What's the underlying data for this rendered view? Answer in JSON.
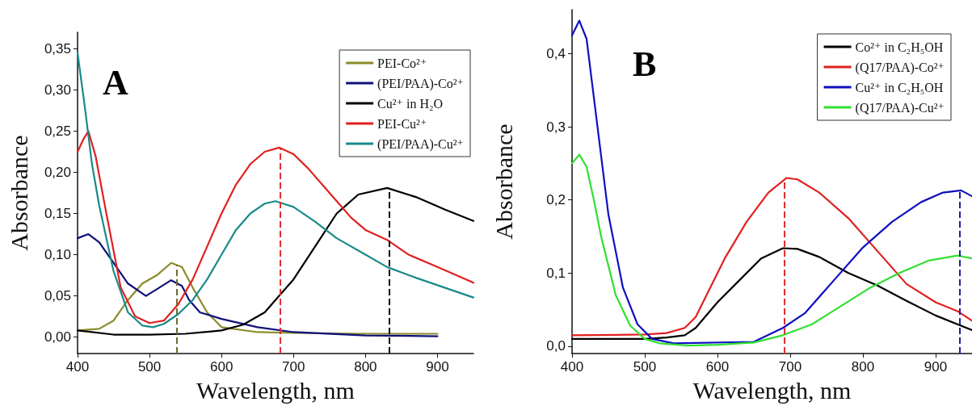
{
  "chart_data": [
    {
      "type": "line",
      "annotations": [
        "A"
      ],
      "xlabel": "Wavelength, nm",
      "ylabel": "Absorbance",
      "xlim": [
        400,
        950
      ],
      "xticks": [
        400,
        500,
        600,
        700,
        800,
        900
      ],
      "ylim": [
        -0.02,
        0.37
      ],
      "yticks": [
        {
          "value": 0,
          "label": "0,00"
        },
        {
          "value": 0.05,
          "label": "0,05"
        },
        {
          "value": 0.1,
          "label": "0,10"
        },
        {
          "value": 0.15,
          "label": "0,15"
        },
        {
          "value": 0.2,
          "label": "0,20"
        },
        {
          "value": 0.25,
          "label": "0,25"
        },
        {
          "value": 0.3,
          "label": "0,30"
        },
        {
          "value": 0.35,
          "label": "0,35"
        }
      ],
      "grid": false,
      "legend": "top right",
      "marker": "none",
      "line_style": "solid",
      "ref_lines": [
        {
          "axis": "x",
          "value": 538,
          "color": "#6b6b30",
          "line_style": "dashed"
        },
        {
          "axis": "x",
          "value": 681,
          "color": "#e03030",
          "line_style": "dashed"
        },
        {
          "axis": "x",
          "value": 833,
          "color": "#000000",
          "line_style": "dashed"
        }
      ],
      "series": [
        {
          "name": "PEI-Co²⁺",
          "color": "#8b8b2a",
          "x": [
            400,
            430,
            450,
            470,
            490,
            510,
            530,
            545,
            560,
            580,
            600,
            650,
            700,
            800,
            900
          ],
          "values": [
            0.008,
            0.01,
            0.02,
            0.045,
            0.065,
            0.075,
            0.09,
            0.085,
            0.06,
            0.03,
            0.012,
            0.006,
            0.005,
            0.004,
            0.004
          ]
        },
        {
          "name": "(PEI/PAA)-Co²⁺",
          "color": "#10107a",
          "x": [
            400,
            415,
            430,
            450,
            470,
            495,
            510,
            530,
            545,
            555,
            570,
            600,
            650,
            700,
            800,
            900
          ],
          "values": [
            0.12,
            0.125,
            0.115,
            0.09,
            0.065,
            0.05,
            0.058,
            0.069,
            0.062,
            0.045,
            0.03,
            0.022,
            0.012,
            0.006,
            0.002,
            0.001
          ]
        },
        {
          "name": "Cu²⁺ in H₂O",
          "color": "#000000",
          "x": [
            400,
            450,
            500,
            550,
            600,
            630,
            660,
            680,
            700,
            730,
            760,
            790,
            830,
            870,
            910,
            950
          ],
          "values": [
            0.008,
            0.003,
            0.003,
            0.004,
            0.008,
            0.015,
            0.03,
            0.05,
            0.07,
            0.11,
            0.15,
            0.173,
            0.181,
            0.17,
            0.155,
            0.141
          ]
        },
        {
          "name": "PEI-Cu²⁺",
          "color": "#e02020",
          "x": [
            400,
            408,
            415,
            425,
            440,
            460,
            480,
            500,
            520,
            540,
            560,
            580,
            600,
            620,
            640,
            660,
            680,
            700,
            720,
            750,
            780,
            800,
            830,
            860,
            900,
            950
          ],
          "values": [
            0.225,
            0.24,
            0.25,
            0.22,
            0.15,
            0.06,
            0.025,
            0.017,
            0.02,
            0.04,
            0.07,
            0.11,
            0.15,
            0.185,
            0.21,
            0.225,
            0.23,
            0.222,
            0.205,
            0.175,
            0.145,
            0.13,
            0.118,
            0.1,
            0.085,
            0.066
          ]
        },
        {
          "name": "(PEI/PAA)-Cu²⁺",
          "color": "#1a8a8a",
          "x": [
            400,
            410,
            420,
            430,
            450,
            470,
            490,
            505,
            520,
            540,
            560,
            580,
            600,
            620,
            640,
            660,
            675,
            700,
            730,
            760,
            800,
            830,
            870,
            910,
            950
          ],
          "values": [
            0.345,
            0.28,
            0.21,
            0.16,
            0.08,
            0.03,
            0.014,
            0.012,
            0.016,
            0.028,
            0.045,
            0.07,
            0.1,
            0.13,
            0.15,
            0.162,
            0.165,
            0.158,
            0.14,
            0.12,
            0.1,
            0.085,
            0.072,
            0.06,
            0.048
          ]
        }
      ]
    },
    {
      "type": "line",
      "annotations": [
        "B"
      ],
      "xlabel": "Wavelength, nm",
      "ylabel": "Absorbance",
      "xlim": [
        400,
        950
      ],
      "xticks": [
        400,
        500,
        600,
        700,
        800,
        900
      ],
      "ylim": [
        -0.01,
        0.46
      ],
      "yticks": [
        {
          "value": 0,
          "label": "0,0"
        },
        {
          "value": 0.1,
          "label": "0,1"
        },
        {
          "value": 0.2,
          "label": "0,2"
        },
        {
          "value": 0.3,
          "label": "0,3"
        },
        {
          "value": 0.4,
          "label": "0,4"
        }
      ],
      "grid": false,
      "legend": "top right",
      "marker": "none",
      "line_style": "solid",
      "ref_lines": [
        {
          "axis": "x",
          "value": 692,
          "color": "#e03030",
          "line_style": "dashed"
        },
        {
          "axis": "x",
          "value": 933,
          "color": "#2020a0",
          "line_style": "dashed"
        }
      ],
      "series": [
        {
          "name": "Co²⁺ in C₂H₅OH",
          "color": "#000000",
          "x": [
            400,
            500,
            530,
            555,
            570,
            600,
            630,
            660,
            690,
            710,
            740,
            780,
            820,
            860,
            900,
            930,
            950
          ],
          "values": [
            0.01,
            0.01,
            0.012,
            0.015,
            0.025,
            0.06,
            0.09,
            0.12,
            0.134,
            0.133,
            0.122,
            0.1,
            0.083,
            0.062,
            0.042,
            0.03,
            0.022
          ]
        },
        {
          "name": "(Q17/PAA)-Co²⁺",
          "color": "#e02020",
          "x": [
            400,
            500,
            530,
            555,
            570,
            590,
            610,
            640,
            670,
            695,
            710,
            740,
            780,
            820,
            860,
            900,
            930,
            950
          ],
          "values": [
            0.015,
            0.016,
            0.018,
            0.025,
            0.04,
            0.08,
            0.12,
            0.17,
            0.21,
            0.23,
            0.228,
            0.21,
            0.175,
            0.13,
            0.085,
            0.06,
            0.048,
            0.035
          ]
        },
        {
          "name": "Cu²⁺ in C₂H₅OH",
          "color": "#1010c0",
          "x": [
            400,
            410,
            420,
            430,
            440,
            450,
            470,
            490,
            510,
            540,
            650,
            690,
            720,
            760,
            800,
            840,
            880,
            910,
            935,
            950
          ],
          "values": [
            0.425,
            0.445,
            0.42,
            0.34,
            0.26,
            0.18,
            0.08,
            0.03,
            0.01,
            0.004,
            0.006,
            0.025,
            0.045,
            0.09,
            0.135,
            0.17,
            0.197,
            0.21,
            0.213,
            0.205
          ]
        },
        {
          "name": "(Q17/PAA)-Cu²⁺",
          "color": "#30e030",
          "x": [
            400,
            410,
            420,
            430,
            440,
            460,
            480,
            500,
            520,
            560,
            600,
            650,
            690,
            730,
            770,
            810,
            850,
            890,
            930,
            950
          ],
          "values": [
            0.25,
            0.262,
            0.245,
            0.2,
            0.15,
            0.07,
            0.028,
            0.01,
            0.004,
            0.001,
            0.002,
            0.005,
            0.015,
            0.03,
            0.055,
            0.08,
            0.1,
            0.117,
            0.124,
            0.12
          ]
        }
      ]
    }
  ]
}
